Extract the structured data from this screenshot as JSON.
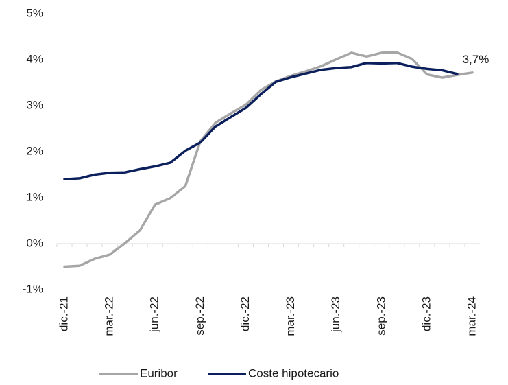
{
  "chart_data": {
    "type": "line",
    "categories": [
      "dic.-21",
      null,
      null,
      "mar.-22",
      null,
      null,
      "jun.-22",
      null,
      null,
      "sep.-22",
      null,
      null,
      "dic.-22",
      null,
      null,
      "mar.-23",
      null,
      null,
      "jun.-23",
      null,
      null,
      "sep.-23",
      null,
      null,
      "dic.-23",
      null,
      null,
      "mar.-24"
    ],
    "series": [
      {
        "name": "Euribor",
        "color": "#a6a6a6",
        "values": [
          -0.5,
          -0.48,
          -0.33,
          -0.24,
          0.01,
          0.29,
          0.85,
          0.99,
          1.25,
          2.23,
          2.63,
          2.83,
          3.02,
          3.34,
          3.53,
          3.65,
          3.75,
          3.86,
          4.01,
          4.15,
          4.07,
          4.15,
          4.16,
          4.02,
          3.68,
          3.61,
          3.67,
          3.72
        ]
      },
      {
        "name": "Coste hipotecario",
        "color": "#0b1f5c",
        "values": [
          1.4,
          1.42,
          1.5,
          1.54,
          1.55,
          1.62,
          1.68,
          1.76,
          2.02,
          2.2,
          2.55,
          2.75,
          2.95,
          3.25,
          3.52,
          3.62,
          3.7,
          3.78,
          3.82,
          3.84,
          3.93,
          3.92,
          3.93,
          3.85,
          3.8,
          3.77,
          3.69,
          null
        ]
      }
    ],
    "annotation": "3,7%",
    "ylim": [
      -1,
      5
    ],
    "yticks": [
      {
        "value": -1,
        "label": "-1%"
      },
      {
        "value": 0,
        "label": "0%"
      },
      {
        "value": 1,
        "label": "1%"
      },
      {
        "value": 2,
        "label": "2%"
      },
      {
        "value": 3,
        "label": "3%"
      },
      {
        "value": 4,
        "label": "4%"
      },
      {
        "value": 5,
        "label": "5%"
      }
    ],
    "legend": "bottom"
  }
}
